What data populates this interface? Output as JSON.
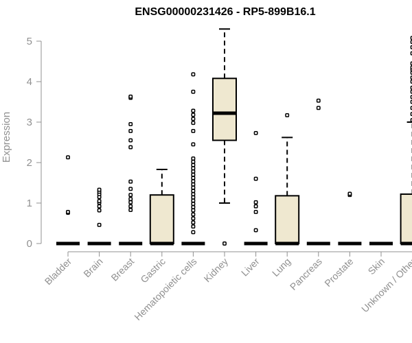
{
  "chart_data": {
    "type": "box",
    "title": "ENSG00000231426 - RP5-899B16.1",
    "xlabel": "",
    "ylabel": "Expression",
    "ylim": [
      0,
      5.3
    ],
    "yticks": [
      0,
      1,
      2,
      3,
      4,
      5
    ],
    "colors": {
      "box_fill": "#efe8d0",
      "stroke": "#000000",
      "axis": "#909090"
    },
    "categories": [
      "Bladder",
      "Brain",
      "Breast",
      "Gastric",
      "Hematopoietic cells",
      "Kidney",
      "Liver",
      "Lung",
      "Pancreas",
      "Prostate",
      "Skin",
      "Unknown / Other"
    ],
    "boxes": [
      {
        "category": "Bladder",
        "min": 0,
        "q1": 0,
        "median": 0,
        "q3": 0,
        "max": 0,
        "outliers": [
          0.76,
          0.78,
          2.13
        ]
      },
      {
        "category": "Brain",
        "min": 0,
        "q1": 0,
        "median": 0,
        "q3": 0,
        "max": 0,
        "outliers": [
          0.46,
          0.82,
          0.92,
          1.01,
          1.05,
          1.15,
          1.22,
          1.28,
          1.33
        ]
      },
      {
        "category": "Breast",
        "min": 0,
        "q1": 0,
        "median": 0,
        "q3": 0,
        "max": 0,
        "outliers": [
          0.83,
          0.92,
          1.02,
          1.1,
          1.2,
          1.35,
          1.53,
          2.38,
          2.55,
          2.78,
          2.95,
          3.6,
          3.63
        ]
      },
      {
        "category": "Gastric",
        "min": 0,
        "q1": 0,
        "median": 0,
        "q3": 1.2,
        "max": 1.83,
        "outliers": []
      },
      {
        "category": "Hematopoietic cells",
        "min": 0,
        "q1": 0,
        "median": 0,
        "q3": 0,
        "max": 0,
        "outliers": [
          0.28,
          0.42,
          0.52,
          0.62,
          0.72,
          0.82,
          0.9,
          0.98,
          1.06,
          1.14,
          1.22,
          1.3,
          1.38,
          1.46,
          1.54,
          1.62,
          1.7,
          1.78,
          1.86,
          1.94,
          2.02,
          2.1,
          2.45,
          2.78,
          2.98,
          3.08,
          3.18,
          3.28,
          3.75,
          4.18
        ]
      },
      {
        "category": "Kidney",
        "min": 1.0,
        "q1": 2.55,
        "median": 3.22,
        "q3": 4.08,
        "max": 5.3,
        "outliers": [
          0
        ]
      },
      {
        "category": "Liver",
        "min": 0,
        "q1": 0,
        "median": 0,
        "q3": 0,
        "max": 0,
        "outliers": [
          0.33,
          0.78,
          0.92,
          1.02,
          1.6,
          2.73
        ]
      },
      {
        "category": "Lung",
        "min": 0,
        "q1": 0,
        "median": 0,
        "q3": 1.18,
        "max": 2.62,
        "outliers": [
          3.17
        ]
      },
      {
        "category": "Pancreas",
        "min": 0,
        "q1": 0,
        "median": 0,
        "q3": 0,
        "max": 0,
        "outliers": [
          3.35,
          3.53
        ]
      },
      {
        "category": "Prostate",
        "min": 0,
        "q1": 0,
        "median": 0,
        "q3": 0,
        "max": 0,
        "outliers": [
          1.2,
          1.23
        ]
      },
      {
        "category": "Skin",
        "min": 0,
        "q1": 0,
        "median": 0,
        "q3": 0,
        "max": 0,
        "outliers": []
      },
      {
        "category": "Unknown / Other",
        "min": 0,
        "q1": 0,
        "median": 0,
        "q3": 1.22,
        "max": 3.0,
        "outliers": [
          3.05,
          3.2,
          3.35,
          3.5,
          3.62,
          3.75,
          3.85,
          4.0,
          4.1,
          4.22,
          4.3,
          4.35,
          4.45,
          4.7,
          4.85,
          4.98,
          5.08
        ]
      }
    ]
  }
}
